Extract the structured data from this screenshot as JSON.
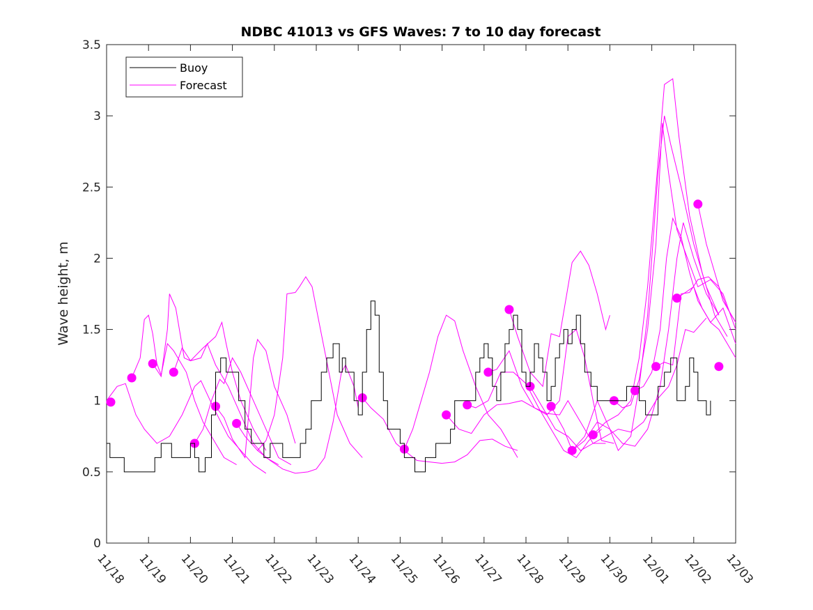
{
  "chart_data": {
    "type": "line",
    "title": "NDBC 41013 vs GFS Waves: 7 to 10 day forecast",
    "xlabel": "",
    "ylabel": "Wave height, m",
    "xlim": [
      0,
      15
    ],
    "ylim": [
      0,
      3.5
    ],
    "x_ticks": [
      0,
      1,
      2,
      3,
      4,
      5,
      6,
      7,
      8,
      9,
      10,
      11,
      12,
      13,
      14,
      15
    ],
    "x_tick_labels": [
      "11/18",
      "11/19",
      "11/20",
      "11/21",
      "11/22",
      "11/23",
      "11/24",
      "11/25",
      "11/26",
      "11/27",
      "11/28",
      "11/29",
      "11/30",
      "12/01",
      "12/02",
      "12/03"
    ],
    "y_ticks": [
      0,
      0.5,
      1,
      1.5,
      2,
      2.5,
      3,
      3.5
    ],
    "y_tick_labels": [
      "0",
      "0.5",
      "1",
      "1.5",
      "2",
      "2.5",
      "3",
      "3.5"
    ],
    "legend": {
      "position": "top-left",
      "entries": [
        {
          "label": "Buoy",
          "color": "#000000"
        },
        {
          "label": "Forecast",
          "color": "#ff00ff"
        }
      ]
    },
    "colors": {
      "buoy": "#000000",
      "forecast": "#ff00ff",
      "axis": "#262626"
    },
    "series": [
      {
        "name": "Buoy",
        "x": [
          0,
          0.08,
          0.25,
          0.42,
          0.6,
          0.72,
          1.0,
          1.15,
          1.3,
          1.45,
          1.55,
          1.7,
          1.85,
          2.0,
          2.1,
          2.2,
          2.35,
          2.5,
          2.6,
          2.72,
          2.85,
          3.0,
          3.15,
          3.3,
          3.45,
          3.6,
          3.75,
          3.9,
          4.05,
          4.2,
          4.35,
          4.5,
          4.62,
          4.75,
          4.88,
          5.0,
          5.12,
          5.25,
          5.4,
          5.5,
          5.55,
          5.62,
          5.7,
          5.8,
          5.9,
          6.0,
          6.1,
          6.2,
          6.3,
          6.4,
          6.5,
          6.6,
          6.7,
          6.85,
          7.0,
          7.1,
          7.2,
          7.35,
          7.5,
          7.6,
          7.7,
          7.85,
          8.0,
          8.1,
          8.2,
          8.3,
          8.45,
          8.6,
          8.7,
          8.8,
          8.9,
          9.0,
          9.1,
          9.2,
          9.3,
          9.4,
          9.5,
          9.6,
          9.7,
          9.8,
          9.9,
          10.0,
          10.1,
          10.2,
          10.3,
          10.4,
          10.5,
          10.6,
          10.7,
          10.8,
          10.9,
          11.0,
          11.1,
          11.2,
          11.3,
          11.4,
          11.55,
          11.7,
          11.85,
          12.0,
          12.1,
          12.25,
          12.4,
          12.55,
          12.7,
          12.85,
          13.0,
          13.15,
          13.3,
          13.45,
          13.6,
          13.7,
          13.8,
          13.9,
          14.0,
          14.1,
          14.2,
          14.3,
          14.4
        ],
        "values": [
          0.7,
          0.6,
          0.6,
          0.5,
          0.5,
          0.5,
          0.5,
          0.6,
          0.7,
          0.7,
          0.6,
          0.6,
          0.6,
          0.7,
          0.6,
          0.5,
          0.6,
          0.9,
          1.2,
          1.3,
          1.2,
          1.2,
          1.0,
          0.8,
          0.7,
          0.7,
          0.6,
          0.7,
          0.7,
          0.6,
          0.6,
          0.6,
          0.7,
          0.8,
          1.0,
          1.0,
          1.2,
          1.3,
          1.4,
          1.4,
          1.2,
          1.3,
          1.2,
          1.2,
          1.0,
          0.9,
          1.2,
          1.5,
          1.7,
          1.6,
          1.2,
          1.0,
          0.8,
          0.8,
          0.7,
          0.6,
          0.6,
          0.5,
          0.5,
          0.6,
          0.6,
          0.7,
          0.7,
          0.7,
          0.8,
          1.0,
          1.0,
          1.0,
          1.0,
          1.2,
          1.3,
          1.4,
          1.3,
          1.1,
          1.0,
          1.2,
          1.4,
          1.5,
          1.6,
          1.5,
          1.2,
          1.1,
          1.2,
          1.4,
          1.3,
          1.2,
          1.0,
          1.1,
          1.3,
          1.4,
          1.5,
          1.4,
          1.5,
          1.6,
          1.4,
          1.2,
          1.1,
          1.0,
          1.0,
          1.0,
          1.0,
          1.0,
          1.1,
          1.1,
          1.0,
          0.9,
          0.9,
          1.1,
          1.2,
          1.3,
          1.0,
          1.0,
          1.1,
          1.3,
          1.2,
          1.0,
          1.0,
          0.9,
          1.0
        ]
      }
    ]
  }
}
